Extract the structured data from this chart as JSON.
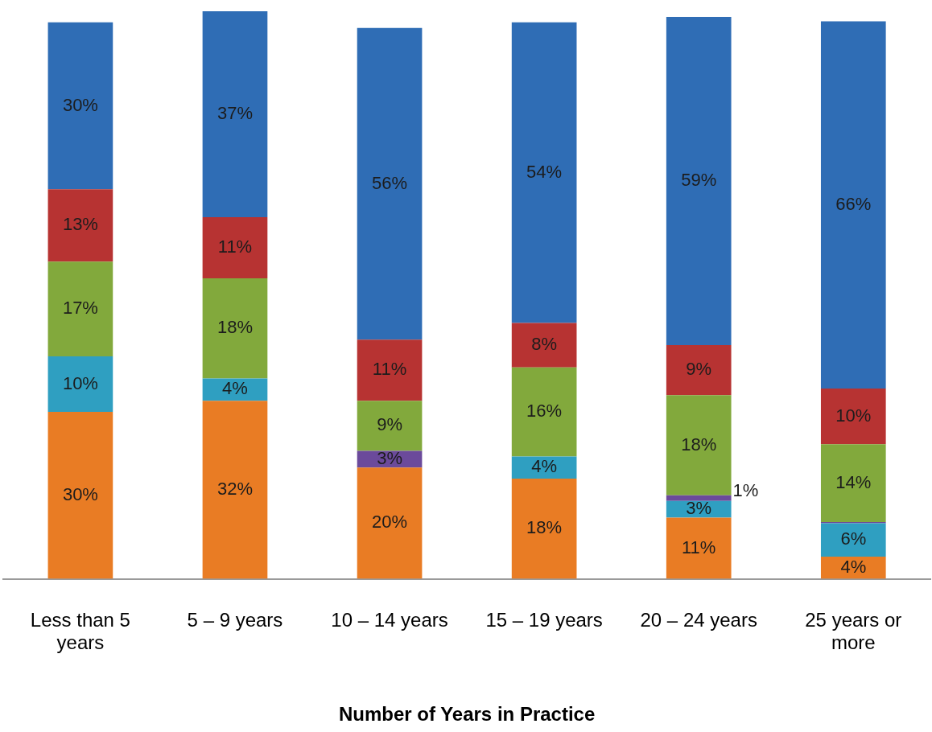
{
  "chart_data": {
    "type": "bar",
    "stacked": true,
    "xlabel": "Number of Years in Practice",
    "categories": [
      "Less than 5 years",
      "5 – 9 years",
      "10 – 14 years",
      "15 – 19 years",
      "20 – 24 years",
      "25 years or more"
    ],
    "series": [
      {
        "color": "#e97c24",
        "values": [
          30,
          32,
          20,
          18,
          11,
          4
        ],
        "value_labels": [
          "30%",
          "32%",
          "20%",
          "18%",
          "11%",
          "4%"
        ]
      },
      {
        "color": "#2f9fc1",
        "values": [
          10,
          4,
          0,
          4,
          3,
          6
        ],
        "value_labels": [
          "10%",
          "4%",
          null,
          "4%",
          "3%",
          "6%"
        ]
      },
      {
        "color": "#6b4a9b",
        "values": [
          0,
          0,
          3,
          0,
          1,
          0.2
        ],
        "value_labels": [
          null,
          null,
          "3%",
          null,
          "1%",
          null
        ]
      },
      {
        "color": "#82a93c",
        "values": [
          17,
          18,
          9,
          16,
          18,
          14
        ],
        "value_labels": [
          "17%",
          "18%",
          "9%",
          "16%",
          "18%",
          "14%"
        ]
      },
      {
        "color": "#b73332",
        "values": [
          13,
          11,
          11,
          8,
          9,
          10
        ],
        "value_labels": [
          "13%",
          "11%",
          "11%",
          "8%",
          "9%",
          "10%"
        ]
      },
      {
        "color": "#2f6db5",
        "values": [
          30,
          37,
          56,
          54,
          59,
          66
        ],
        "value_labels": [
          "30%",
          "37%",
          "56%",
          "54%",
          "59%",
          "66%"
        ]
      }
    ],
    "grid": false,
    "legend": false
  }
}
